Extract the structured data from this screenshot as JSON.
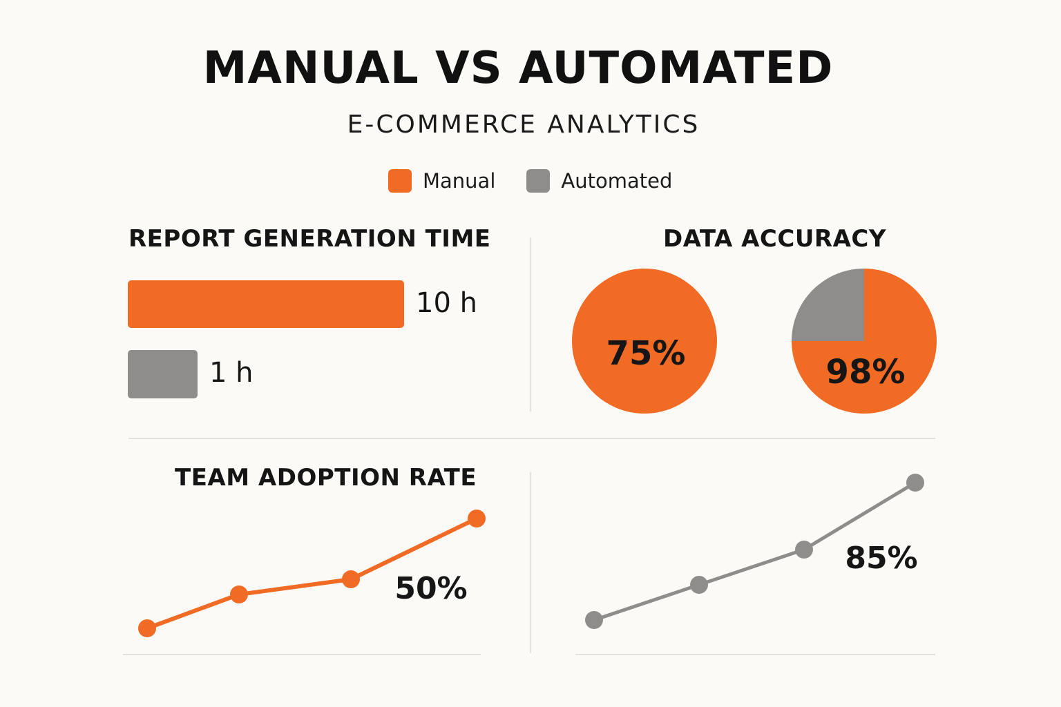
{
  "title": "MANUAL VS AUTOMATED",
  "subtitle": "E-COMMERCE ANALYTICS",
  "legend": [
    {
      "label": "Manual",
      "color": "#f26b25"
    },
    {
      "label": "Automated",
      "color": "#8f8d8b"
    }
  ],
  "colors": {
    "manual": "#f26b25",
    "automated": "#8f8d8b",
    "text": "#161616"
  },
  "chart_data": [
    {
      "type": "bar",
      "title": "REPORT GENERATION TIME",
      "orientation": "horizontal",
      "categories": [
        "Manual",
        "Automated"
      ],
      "values": [
        10,
        1
      ],
      "labels": [
        "10 h",
        "1 h"
      ],
      "unit": "h",
      "xlim": [
        0,
        10
      ]
    },
    {
      "type": "pie",
      "title": "DATA ACCURACY",
      "pies": [
        {
          "name": "Manual",
          "value": 75,
          "label": "75%",
          "slices": [
            {
              "name": "Manual",
              "value": 100
            }
          ]
        },
        {
          "name": "Automated",
          "value": 98,
          "label": "98%",
          "slices": [
            {
              "name": "Manual",
              "value": 75
            },
            {
              "name": "Automated",
              "value": 25
            }
          ]
        }
      ]
    },
    {
      "type": "line",
      "title": "TEAM ADOPTION RATE",
      "series": [
        {
          "name": "Manual",
          "values": [
            10,
            24,
            30,
            50
          ],
          "label": "50%"
        },
        {
          "name": "Automated",
          "values": [
            10,
            25,
            45,
            85
          ],
          "label": "85%"
        }
      ],
      "x": [
        1,
        2,
        3,
        4
      ],
      "ylim": [
        0,
        100
      ]
    }
  ]
}
